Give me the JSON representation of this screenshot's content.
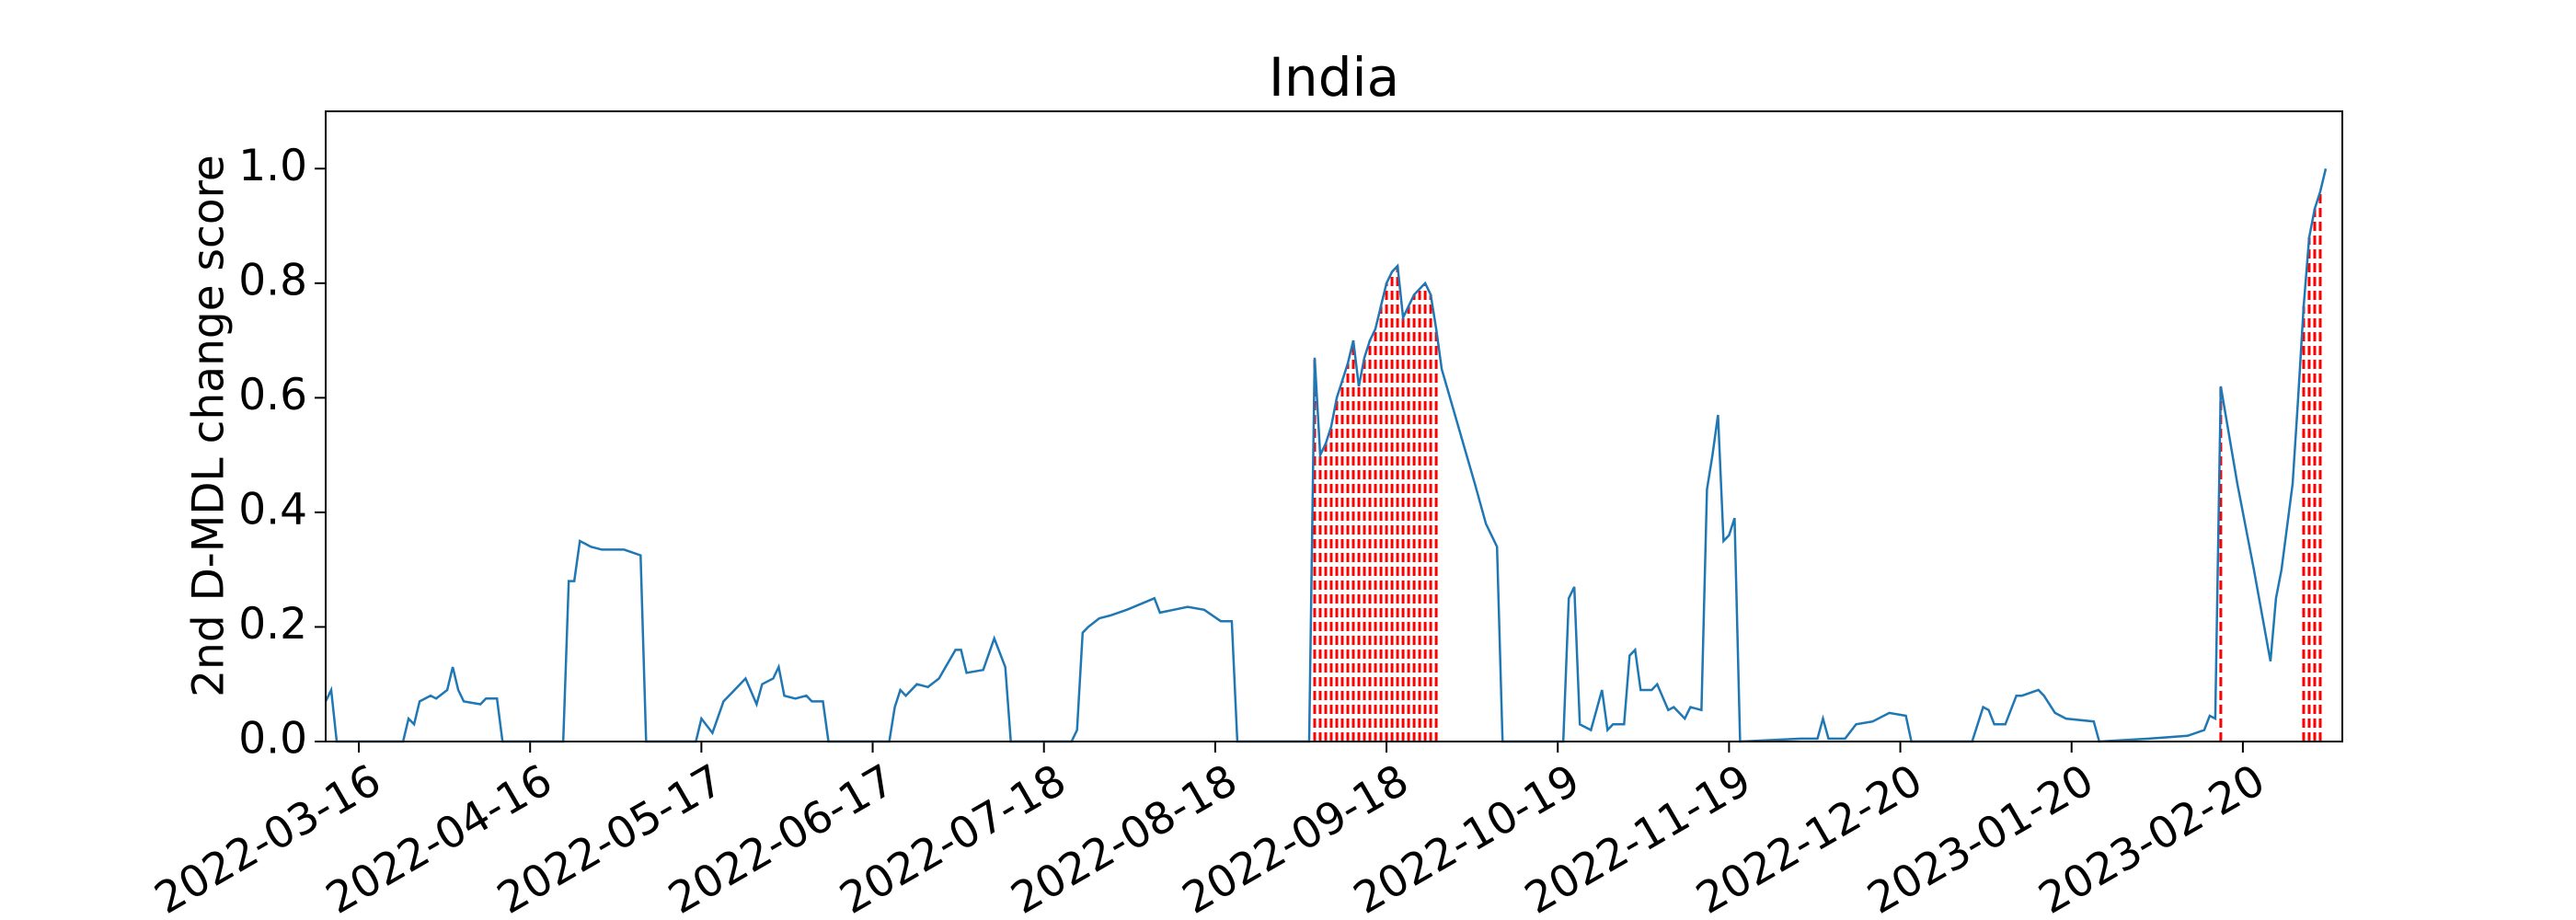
{
  "chart_data": {
    "type": "line",
    "title": "India",
    "y_label": "2nd D-MDL change score",
    "x": [
      "2022-03-10",
      "2022-03-11",
      "2022-03-12",
      "2022-03-24",
      "2022-03-25",
      "2022-03-26",
      "2022-03-27",
      "2022-03-29",
      "2022-03-30",
      "2022-04-01",
      "2022-04-02",
      "2022-04-03",
      "2022-04-04",
      "2022-04-07",
      "2022-04-08",
      "2022-04-10",
      "2022-04-11",
      "2022-04-22",
      "2022-04-23",
      "2022-04-24",
      "2022-04-25",
      "2022-04-27",
      "2022-04-29",
      "2022-05-03",
      "2022-05-06",
      "2022-05-07",
      "2022-05-16",
      "2022-05-17",
      "2022-05-19",
      "2022-05-21",
      "2022-05-23",
      "2022-05-25",
      "2022-05-27",
      "2022-05-28",
      "2022-05-30",
      "2022-05-31",
      "2022-06-01",
      "2022-06-03",
      "2022-06-05",
      "2022-06-06",
      "2022-06-08",
      "2022-06-09",
      "2022-06-20",
      "2022-06-21",
      "2022-06-22",
      "2022-06-23",
      "2022-06-25",
      "2022-06-27",
      "2022-06-29",
      "2022-07-02",
      "2022-07-03",
      "2022-07-04",
      "2022-07-07",
      "2022-07-09",
      "2022-07-11",
      "2022-07-12",
      "2022-07-23",
      "2022-07-24",
      "2022-07-25",
      "2022-07-26",
      "2022-07-28",
      "2022-07-30",
      "2022-08-02",
      "2022-08-07",
      "2022-08-08",
      "2022-08-13",
      "2022-08-16",
      "2022-08-19",
      "2022-08-21",
      "2022-08-22",
      "2022-09-04",
      "2022-09-05",
      "2022-09-06",
      "2022-09-07",
      "2022-09-08",
      "2022-09-09",
      "2022-09-10",
      "2022-09-11",
      "2022-09-12",
      "2022-09-13",
      "2022-09-14",
      "2022-09-15",
      "2022-09-16",
      "2022-09-17",
      "2022-09-18",
      "2022-09-19",
      "2022-09-20",
      "2022-09-21",
      "2022-09-22",
      "2022-09-23",
      "2022-09-24",
      "2022-09-25",
      "2022-09-26",
      "2022-09-27",
      "2022-09-28",
      "2022-10-01",
      "2022-10-04",
      "2022-10-06",
      "2022-10-08",
      "2022-10-09",
      "2022-10-20",
      "2022-10-21",
      "2022-10-22",
      "2022-10-23",
      "2022-10-25",
      "2022-10-27",
      "2022-10-28",
      "2022-10-29",
      "2022-10-31",
      "2022-11-01",
      "2022-11-02",
      "2022-11-03",
      "2022-11-05",
      "2022-11-06",
      "2022-11-08",
      "2022-11-09",
      "2022-11-11",
      "2022-11-12",
      "2022-11-14",
      "2022-11-15",
      "2022-11-16",
      "2022-11-17",
      "2022-11-18",
      "2022-11-19",
      "2022-11-20",
      "2022-11-21",
      "2022-12-02",
      "2022-12-05",
      "2022-12-06",
      "2022-12-07",
      "2022-12-10",
      "2022-12-12",
      "2022-12-15",
      "2022-12-18",
      "2022-12-21",
      "2022-12-22",
      "2023-01-02",
      "2023-01-04",
      "2023-01-05",
      "2023-01-06",
      "2023-01-08",
      "2023-01-10",
      "2023-01-11",
      "2023-01-14",
      "2023-01-15",
      "2023-01-17",
      "2023-01-19",
      "2023-01-24",
      "2023-01-25",
      "2023-02-03",
      "2023-02-10",
      "2023-02-13",
      "2023-02-14",
      "2023-02-15",
      "2023-02-16",
      "2023-02-19",
      "2023-02-22",
      "2023-02-25",
      "2023-02-26",
      "2023-02-27",
      "2023-03-01",
      "2023-03-02",
      "2023-03-03",
      "2023-03-04",
      "2023-03-05",
      "2023-03-06",
      "2023-03-07"
    ],
    "values": [
      0.07,
      0.09,
      0,
      0,
      0.04,
      0.03,
      0.07,
      0.08,
      0.075,
      0.09,
      0.13,
      0.09,
      0.07,
      0.065,
      0.075,
      0.075,
      0,
      0,
      0.28,
      0.28,
      0.35,
      0.34,
      0.335,
      0.335,
      0.325,
      0,
      0,
      0.04,
      0.015,
      0.07,
      0.09,
      0.11,
      0.065,
      0.1,
      0.11,
      0.13,
      0.08,
      0.075,
      0.08,
      0.07,
      0.07,
      0,
      0,
      0.06,
      0.09,
      0.08,
      0.1,
      0.095,
      0.11,
      0.16,
      0.16,
      0.12,
      0.125,
      0.18,
      0.13,
      0,
      0,
      0.02,
      0.19,
      0.2,
      0.215,
      0.22,
      0.23,
      0.25,
      0.225,
      0.235,
      0.23,
      0.21,
      0.21,
      0,
      0,
      0.67,
      0.5,
      0.52,
      0.55,
      0.6,
      0.63,
      0.66,
      0.7,
      0.62,
      0.67,
      0.7,
      0.72,
      0.76,
      0.8,
      0.82,
      0.83,
      0.74,
      0.76,
      0.78,
      0.79,
      0.8,
      0.78,
      0.72,
      0.65,
      0.55,
      0.45,
      0.38,
      0.34,
      0,
      0,
      0.25,
      0.27,
      0.03,
      0.02,
      0.09,
      0.02,
      0.03,
      0.03,
      0.15,
      0.16,
      0.09,
      0.09,
      0.1,
      0.055,
      0.06,
      0.04,
      0.06,
      0.055,
      0.44,
      0.5,
      0.57,
      0.35,
      0.36,
      0.39,
      0,
      0.005,
      0.005,
      0.04,
      0.005,
      0.005,
      0.03,
      0.035,
      0.05,
      0.045,
      0,
      0,
      0.06,
      0.055,
      0.03,
      0.03,
      0.08,
      0.08,
      0.09,
      0.08,
      0.05,
      0.04,
      0.035,
      0,
      0.005,
      0.01,
      0.02,
      0.045,
      0.04,
      0.62,
      0.45,
      0.3,
      0.14,
      0.25,
      0.3,
      0.45,
      0.6,
      0.76,
      0.88,
      0.93,
      0.96,
      1.0
    ],
    "color": "#1f77b4",
    "alarm_x": [
      "2022-09-05",
      "2022-09-06",
      "2022-09-07",
      "2022-09-08",
      "2022-09-09",
      "2022-09-10",
      "2022-09-11",
      "2022-09-12",
      "2022-09-13",
      "2022-09-14",
      "2022-09-15",
      "2022-09-16",
      "2022-09-17",
      "2022-09-18",
      "2022-09-19",
      "2022-09-20",
      "2022-09-21",
      "2022-09-22",
      "2022-09-23",
      "2022-09-24",
      "2022-09-25",
      "2022-09-26",
      "2022-09-27",
      "2023-02-16",
      "2023-03-03",
      "2023-03-04",
      "2023-03-05",
      "2023-03-06"
    ],
    "alarm_color": "#ff0000",
    "xlim": [
      "2022-03-10",
      "2023-03-10"
    ],
    "xticks": [
      "2022-03-16",
      "2022-04-16",
      "2022-05-17",
      "2022-06-17",
      "2022-07-18",
      "2022-08-18",
      "2022-09-18",
      "2022-10-19",
      "2022-11-19",
      "2022-12-20",
      "2023-01-20",
      "2023-02-20"
    ],
    "ylim": [
      0,
      1.1
    ],
    "yticks": [
      {
        "value": 0,
        "label": "0.0"
      },
      {
        "value": 0.2,
        "label": "0.2"
      },
      {
        "value": 0.4,
        "label": "0.4"
      },
      {
        "value": 0.6,
        "label": "0.6"
      },
      {
        "value": 0.8,
        "label": "0.8"
      },
      {
        "value": 1,
        "label": "1.0"
      }
    ]
  }
}
